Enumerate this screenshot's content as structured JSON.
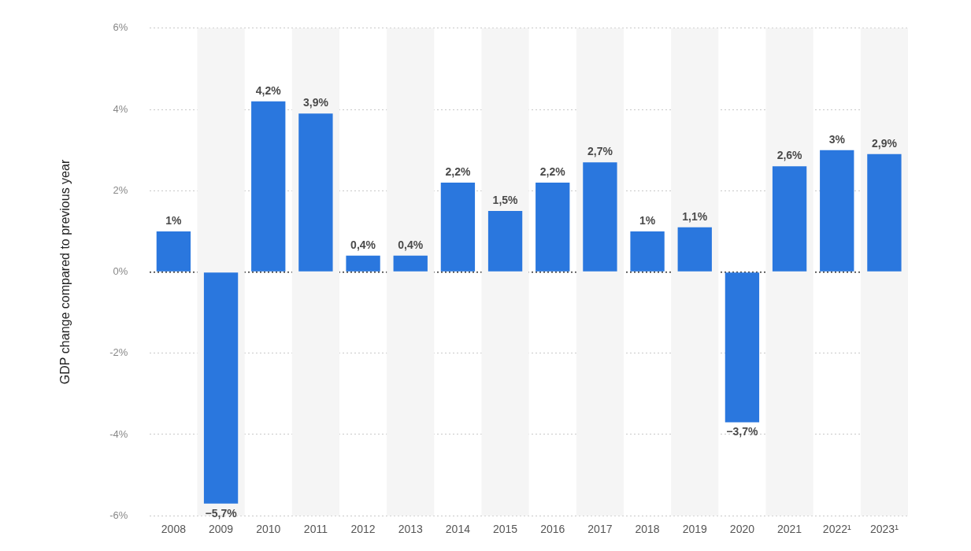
{
  "chart_data": {
    "type": "bar",
    "ylabel": "GDP change compared to previous year",
    "categories": [
      "2008",
      "2009",
      "2010",
      "2011",
      "2012",
      "2013",
      "2014",
      "2015",
      "2016",
      "2017",
      "2018",
      "2019",
      "2020",
      "2021",
      "2022¹",
      "2023¹"
    ],
    "values": [
      1,
      -5.7,
      4.2,
      3.9,
      0.4,
      0.4,
      2.2,
      1.5,
      2.2,
      2.7,
      1,
      1.1,
      -3.7,
      2.6,
      3,
      2.9
    ],
    "value_labels": [
      "1%",
      "−5,7%",
      "4,2%",
      "3,9%",
      "0,4%",
      "0,4%",
      "2,2%",
      "1,5%",
      "2,2%",
      "2,7%",
      "1%",
      "1,1%",
      "−3,7%",
      "2,6%",
      "3%",
      "2,9%"
    ],
    "color": "#2a77de",
    "ylim": [
      -6,
      6
    ],
    "yticks": [
      {
        "value": -6,
        "label": "-6%"
      },
      {
        "value": -4,
        "label": "-4%"
      },
      {
        "value": -2,
        "label": "-2%"
      },
      {
        "value": 0,
        "label": "0%"
      },
      {
        "value": 2,
        "label": "2%"
      },
      {
        "value": 4,
        "label": "4%"
      },
      {
        "value": 6,
        "label": "6%"
      }
    ],
    "grid": true,
    "data_labels": true
  }
}
